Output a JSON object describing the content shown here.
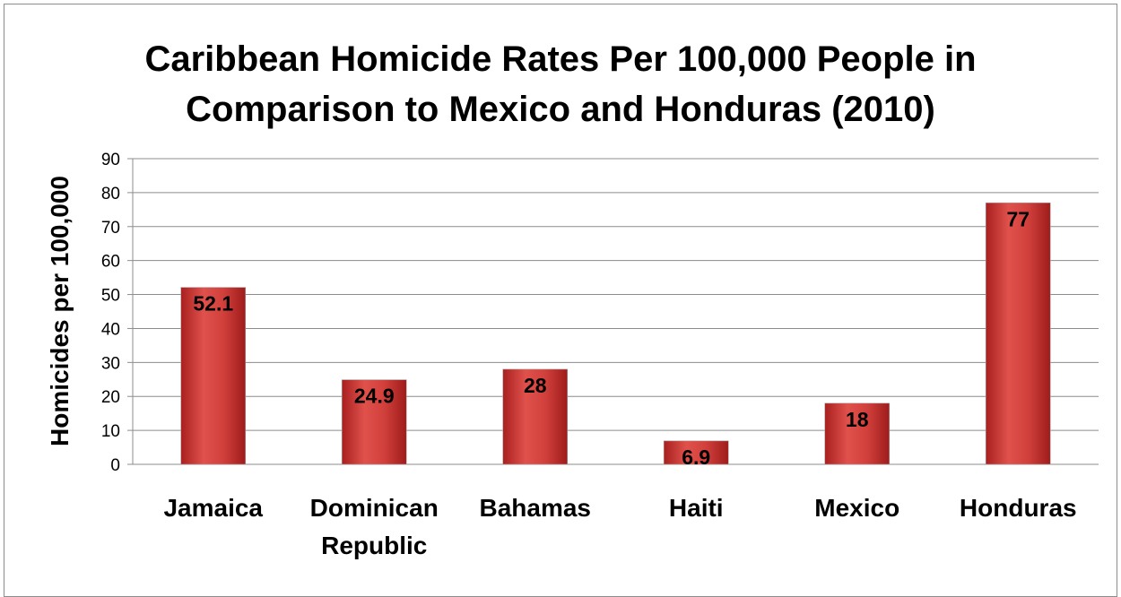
{
  "chart_data": {
    "type": "bar",
    "title_lines": [
      "Caribbean Homicide Rates Per 100,000 People in",
      "Comparison to Mexico and Honduras (2010)"
    ],
    "xlabel": "",
    "ylabel": "Homicides per 100,000",
    "ylim": [
      0,
      90
    ],
    "yticks": [
      0,
      10,
      20,
      30,
      40,
      50,
      60,
      70,
      80,
      90
    ],
    "categories": [
      [
        "Jamaica"
      ],
      [
        "Dominican",
        "Republic"
      ],
      [
        "Bahamas"
      ],
      [
        "Haiti"
      ],
      [
        "Mexico"
      ],
      [
        "Honduras"
      ]
    ],
    "values": [
      52.1,
      24.9,
      28,
      6.9,
      18,
      77
    ],
    "data_labels": [
      "52.1",
      "24.9",
      "28",
      "6.9",
      "18",
      "77"
    ],
    "grid": true,
    "legend": "none",
    "bar_color": "#c0312f",
    "bar_highlight": "#e2504b"
  }
}
